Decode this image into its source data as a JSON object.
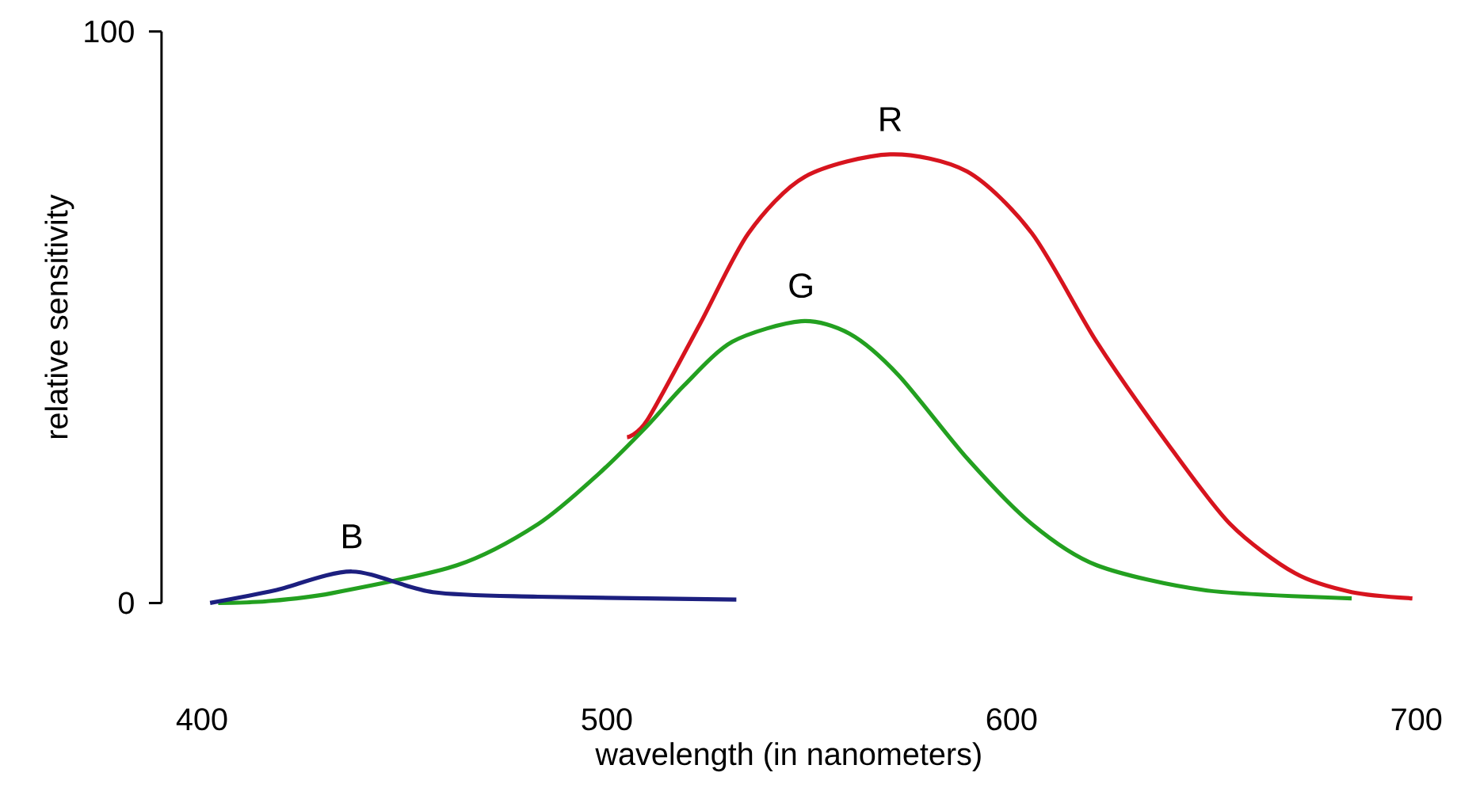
{
  "chart_data": {
    "type": "line",
    "xlabel": "wavelength (in nanometers)",
    "ylabel": "relative sensitivity",
    "xlim": [
      390,
      700
    ],
    "ylim": [
      0,
      100
    ],
    "xticks": [
      400,
      500,
      600,
      700
    ],
    "yticks": [
      0,
      100
    ],
    "grid": false,
    "legend": false,
    "marker": "none",
    "line_style": "solid",
    "series": [
      {
        "name": "R",
        "color": "#d7141e",
        "x": [
          505,
          510,
          523,
          535,
          549,
          570,
          589,
          605,
          621,
          638,
          654,
          670,
          684,
          699
        ],
        "values": [
          29,
          32,
          48.8,
          64.7,
          74.6,
          78.5,
          75.5,
          64.7,
          45.7,
          28.4,
          13.8,
          5.2,
          1.9,
          0.8
        ]
      },
      {
        "name": "G",
        "color": "#23a020",
        "x": [
          404,
          416,
          432,
          463,
          483,
          498,
          510,
          519,
          531,
          548,
          560,
          572,
          589,
          605,
          621,
          648,
          684
        ],
        "values": [
          0,
          0.3,
          1.7,
          6.6,
          13.8,
          22.6,
          31,
          38,
          45.7,
          49.3,
          47.1,
          39.9,
          25.3,
          13.8,
          6.6,
          2.2,
          0.8
        ]
      },
      {
        "name": "B",
        "color": "#1c1f7f",
        "x": [
          402,
          418,
          437,
          457,
          483,
          532
        ],
        "values": [
          0,
          2.2,
          5.5,
          1.9,
          1.1,
          0.6
        ]
      }
    ]
  }
}
